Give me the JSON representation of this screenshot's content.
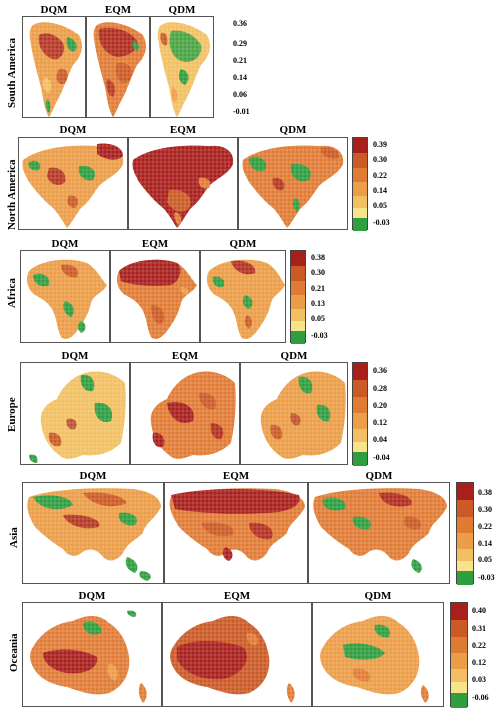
{
  "colors": {
    "c1": "#2e9e3e",
    "c2": "#f6e38a",
    "c3": "#f2c063",
    "c4": "#eb9d47",
    "c5": "#e07b34",
    "c6": "#cb5a26",
    "c7": "#a81f1c",
    "grid": "#ffffff"
  },
  "regions": [
    {
      "name": "South America",
      "methods": [
        "DQM",
        "EQM",
        "QDM"
      ],
      "colorbar_ticks": [
        "0.36",
        "0.29",
        "0.21",
        "0.14",
        "0.06",
        "-0.01"
      ]
    },
    {
      "name": "North America",
      "methods": [
        "DQM",
        "EQM",
        "QDM"
      ],
      "colorbar_ticks": [
        "0.39",
        "0.30",
        "0.22",
        "0.14",
        "0.05",
        "-0.03"
      ]
    },
    {
      "name": "Africa",
      "methods": [
        "DQM",
        "EQM",
        "QDM"
      ],
      "colorbar_ticks": [
        "0.38",
        "0.30",
        "0.21",
        "0.13",
        "0.05",
        "-0.03"
      ]
    },
    {
      "name": "Europe",
      "methods": [
        "DQM",
        "EQM",
        "QDM"
      ],
      "colorbar_ticks": [
        "0.36",
        "0.28",
        "0.20",
        "0.12",
        "0.04",
        "-0.04"
      ]
    },
    {
      "name": "Asia",
      "methods": [
        "DQM",
        "EQM",
        "QDM"
      ],
      "colorbar_ticks": [
        "0.38",
        "0.30",
        "0.22",
        "0.14",
        "0.05",
        "-0.03"
      ]
    },
    {
      "name": "Oceania",
      "methods": [
        "DQM",
        "EQM",
        "QDM"
      ],
      "colorbar_ticks": [
        "0.40",
        "0.31",
        "0.22",
        "0.12",
        "0.03",
        "-0.06"
      ]
    }
  ]
}
